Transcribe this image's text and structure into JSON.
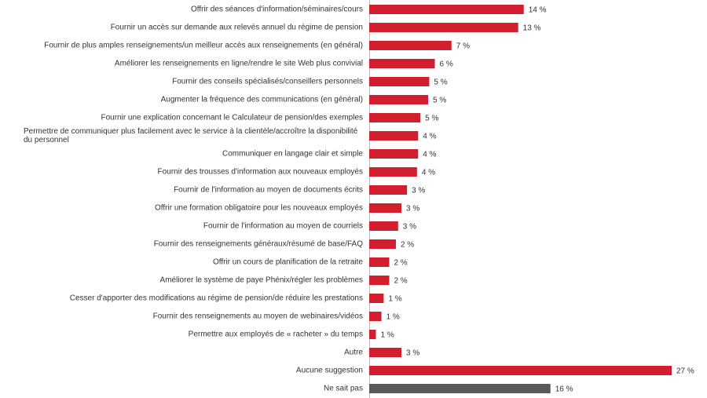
{
  "chart_data": {
    "type": "bar",
    "orientation": "horizontal",
    "categories": [
      "Offrir des séances d'information/séminaires/cours",
      "Fournir un accès sur demande aux relevés annuel du régime de pension",
      "Fournir de plus amples renseignements/un meilleur accès aux renseignements (en général)",
      "Améliorer les renseignements en ligne/rendre le site Web plus convivial",
      "Fournir des conseils spécialisés/conseillers personnels",
      "Augmenter la fréquence des communications (en général)",
      "Fournir une explication concernant le Calculateur de pension/des exemples",
      "Permettre de communiquer plus facilement avec le service à la clientèle/accroître la disponibilité du personnel",
      "Communiquer en langage clair et simple",
      "Fournir des trousses d'information aux nouveaux employés",
      "Fournir de l'information au moyen de documents écrits",
      "Offrir une formation obligatoire pour les nouveaux employés",
      "Fournir de l'information au moyen de courriels",
      "Fournir des renseignements généraux/résumé de base/FAQ",
      "Offrir un cours de planification de la retraite",
      "Améliorer le système de paye Phénix/régler les problèmes",
      "Cesser d'apporter des modifications au régime de pension/de réduire les prestations",
      "Fournir des renseignements au moyen de webinaires/vidéos",
      "Permettre aux employés de « racheter » du temps",
      "Autre",
      "Aucune suggestion",
      "Ne sait pas"
    ],
    "values": [
      13.9,
      13.4,
      7.4,
      5.9,
      5.4,
      5.3,
      4.6,
      4.4,
      4.4,
      4.3,
      3.4,
      2.9,
      2.6,
      2.4,
      1.8,
      1.8,
      1.3,
      1.1,
      0.6,
      2.9,
      27.2,
      16.3
    ],
    "value_labels": [
      "14 %",
      "13 %",
      "7 %",
      "6 %",
      "5 %",
      "5 %",
      "5 %",
      "4 %",
      "4 %",
      "4 %",
      "3 %",
      "3 %",
      "3 %",
      "2 %",
      "2 %",
      "2 %",
      "1 %",
      "1 %",
      "1 %",
      "3 %",
      "27 %",
      "16 %"
    ],
    "colors": [
      "#d21f2f",
      "#d21f2f",
      "#d21f2f",
      "#d21f2f",
      "#d21f2f",
      "#d21f2f",
      "#d21f2f",
      "#d21f2f",
      "#d21f2f",
      "#d21f2f",
      "#d21f2f",
      "#d21f2f",
      "#d21f2f",
      "#d21f2f",
      "#d21f2f",
      "#d21f2f",
      "#d21f2f",
      "#d21f2f",
      "#d21f2f",
      "#d21f2f",
      "#d21f2f",
      "#595959"
    ]
  }
}
